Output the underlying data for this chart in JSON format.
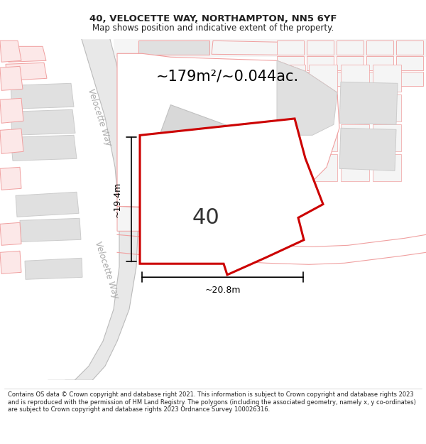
{
  "title": "40, VELOCETTE WAY, NORTHAMPTON, NN5 6YF",
  "subtitle": "Map shows position and indicative extent of the property.",
  "area_label": "~179m²/~0.044ac.",
  "width_label": "~20.8m",
  "height_label": "~19.4m",
  "number_label": "40",
  "footer": "Contains OS data © Crown copyright and database right 2021. This information is subject to Crown copyright and database rights 2023 and is reproduced with the permission of HM Land Registry. The polygons (including the associated geometry, namely x, y co-ordinates) are subject to Crown copyright and database rights 2023 Ordnance Survey 100026316.",
  "bg_color": "#ffffff",
  "road_color": "#f0a0a0",
  "road_fill": "#f9e8e8",
  "gray_fill": "#e0e0e0",
  "gray_stroke": "#cccccc",
  "pink_stroke": "#f0a0a0",
  "pink_fill": "#fce8e8",
  "red_poly": "#cc0000",
  "white": "#ffffff",
  "road_gray": "#d8d8d8",
  "road_gray_stroke": "#bbbbbb"
}
